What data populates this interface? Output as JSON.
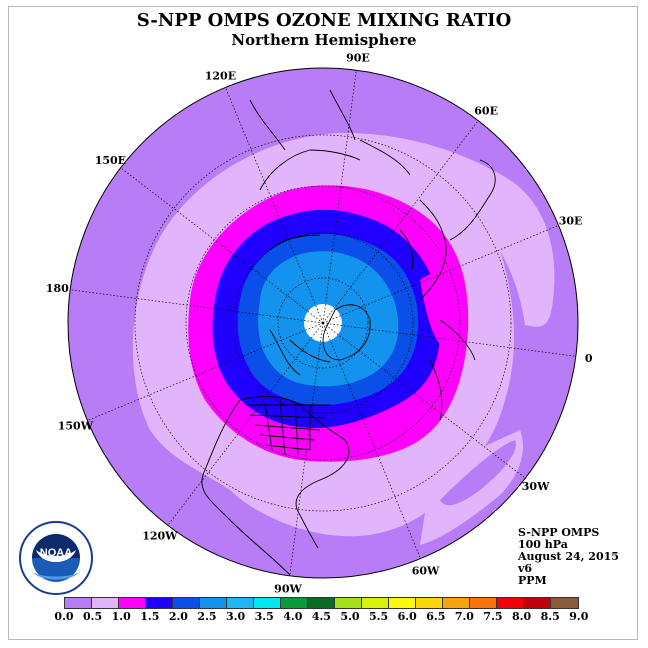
{
  "header": {
    "title": "S-NPP OMPS OZONE MIXING RATIO",
    "subtitle": "Northern Hemisphere"
  },
  "longitude_labels": [
    "90E",
    "60E",
    "30E",
    "0",
    "30W",
    "60W",
    "90W",
    "120W",
    "150W",
    "180",
    "150E",
    "120E"
  ],
  "info": {
    "instrument": "S-NPP OMPS",
    "level": "100 hPa",
    "date": "August 24, 2015",
    "version": "v6",
    "units": "PPM"
  },
  "logo": {
    "text": "NOAA",
    "icon": "noaa-logo-icon"
  },
  "colorbar": {
    "ticks": [
      "0.0",
      "0.5",
      "1.0",
      "1.5",
      "2.0",
      "2.5",
      "3.0",
      "3.5",
      "4.0",
      "4.5",
      "5.0",
      "5.5",
      "6.0",
      "6.5",
      "7.0",
      "7.5",
      "8.0",
      "8.5",
      "9.0"
    ],
    "colors": [
      "#b87cf6",
      "#e2b4fb",
      "#ff00ff",
      "#1f00ff",
      "#0a4fe8",
      "#1493ee",
      "#1eb7f3",
      "#00e8f0",
      "#0a9a3a",
      "#0c6b22",
      "#a4e21c",
      "#d8f20c",
      "#fbf90a",
      "#fcd60a",
      "#f7a40c",
      "#f9730a",
      "#f00008",
      "#c2000a"
    ],
    "last_color": "#8a5a3a"
  },
  "map": {
    "projection": "north-polar-stereographic",
    "contour_levels_ppm": [
      0.5,
      1.0,
      1.5,
      2.0,
      2.5
    ],
    "colors": {
      "ocean_band_0_0.5": "#b87cf6",
      "band_0.5_1.0": "#e2b4fb",
      "band_1.0_1.5": "#ff00ff",
      "band_1.5_2.0": "#1f00ff",
      "band_2.0_2.5": "#0a4fe8",
      "band_2.5_3.0": "#1493ee",
      "missing_pole": "#ffffff"
    }
  }
}
